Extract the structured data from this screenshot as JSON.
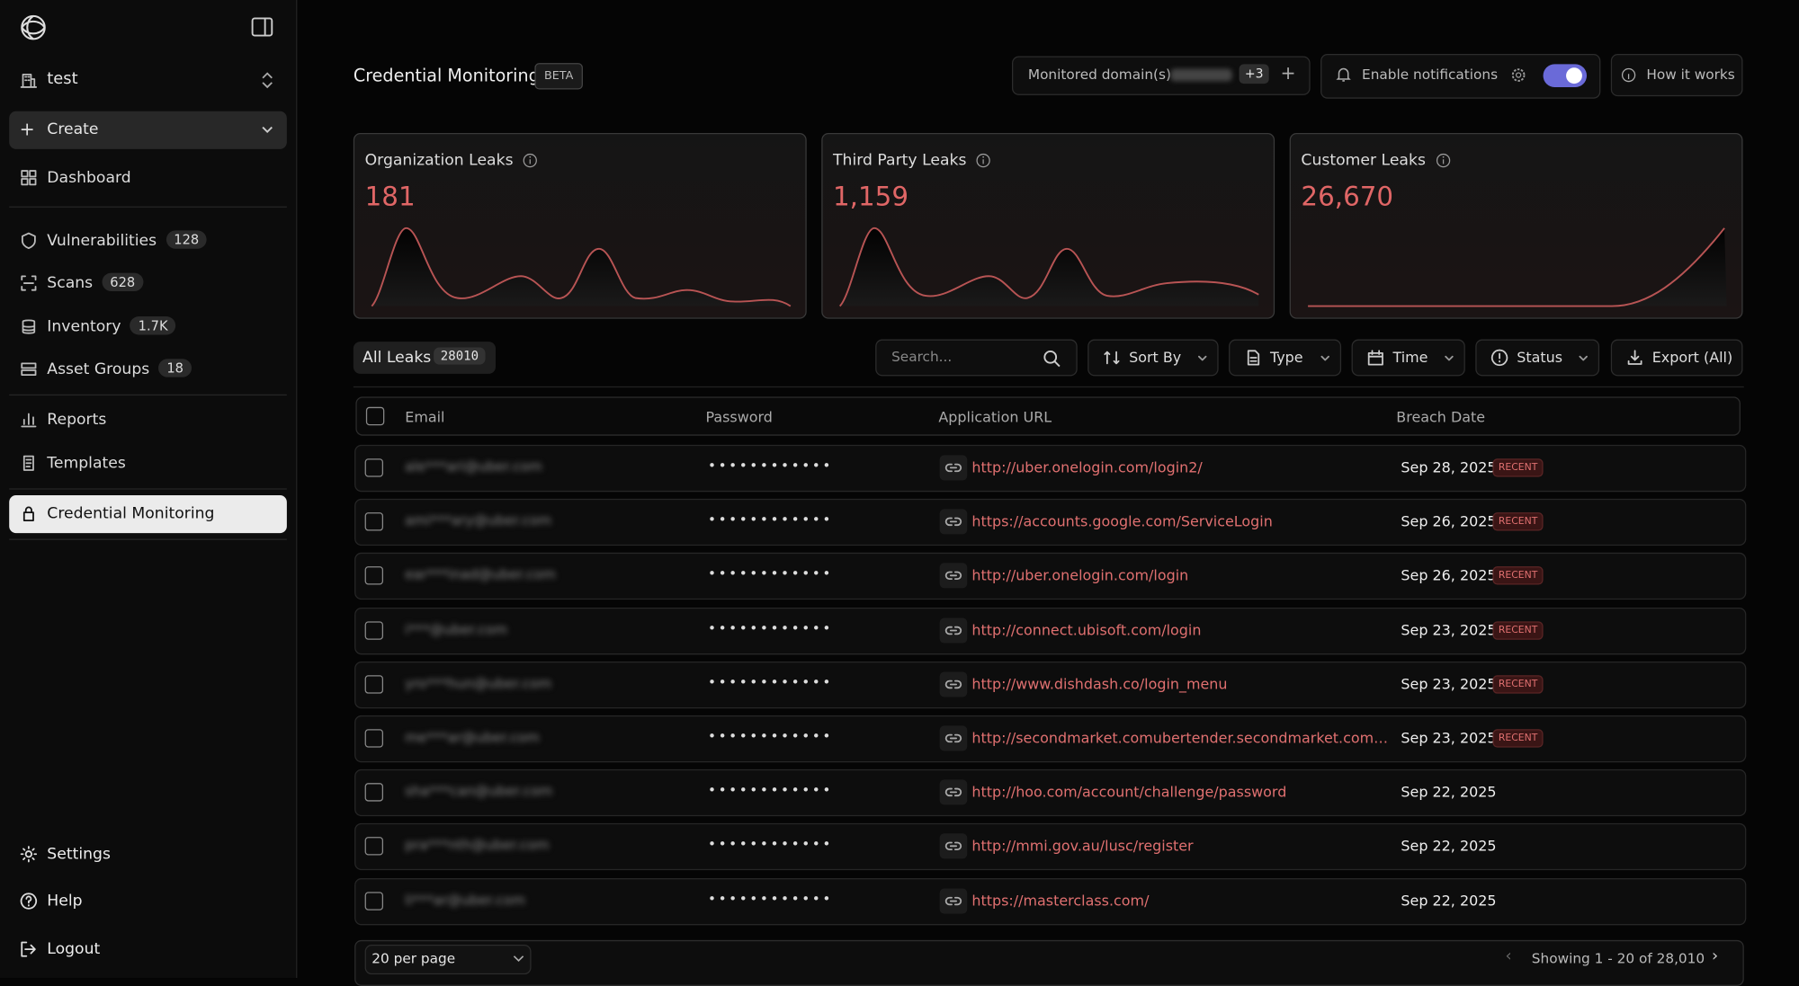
{
  "sidebar": {
    "workspace": "test",
    "create": "Create",
    "nav": [
      {
        "label": "Dashboard"
      },
      {
        "label": "Vulnerabilities",
        "badge": "128"
      },
      {
        "label": "Scans",
        "badge": "628"
      },
      {
        "label": "Inventory",
        "badge": "1.7K"
      },
      {
        "label": "Asset Groups",
        "badge": "18"
      },
      {
        "label": "Reports"
      },
      {
        "label": "Templates"
      },
      {
        "label": "Credential Monitoring"
      }
    ],
    "nav_bottom": [
      "Settings",
      "Help",
      "Logout"
    ]
  },
  "header": {
    "title": "Credential Monitoring",
    "badge": "BETA",
    "monitored_domains": "Monitored domain(s)",
    "domain_count": "+3",
    "notifications": "Enable notifications",
    "how_it_works": "How it works"
  },
  "cards": [
    {
      "label": "Organization Leaks",
      "value": "181"
    },
    {
      "label": "Third Party Leaks",
      "value": "1,159"
    },
    {
      "label": "Customer Leaks",
      "value": "26,670"
    }
  ],
  "filters": {
    "tab": "All Leaks",
    "tab_count": "28010",
    "search": "Search...",
    "sort": "Sort By",
    "type": "Type",
    "time": "Time",
    "status": "Status",
    "export": "Export (All)"
  },
  "table": {
    "columns": [
      "Email",
      "Password",
      "Application URL",
      "Breach Date"
    ],
    "rows": [
      {
        "email": "ale***ari@uber.com",
        "password": "••••••••••••",
        "url": "http://uber.onelogin.com/login2/",
        "date": "Sep 28, 2025",
        "status": "RECENT"
      },
      {
        "email": "ami***ary@uber.com",
        "password": "••••••••••••",
        "url": "https://accounts.google.com/ServiceLogin",
        "date": "Sep 26, 2025",
        "status": "RECENT"
      },
      {
        "email": "ear***inad@uber.com",
        "password": "••••••••••••",
        "url": "http://uber.onelogin.com/login",
        "date": "Sep 26, 2025",
        "status": "RECENT"
      },
      {
        "email": "i***@uber.com",
        "password": "••••••••••••",
        "url": "http://connect.ubisoft.com/login",
        "date": "Sep 23, 2025",
        "status": "RECENT"
      },
      {
        "email": "yro***hun@uber.com",
        "password": "••••••••••••",
        "url": "http://www.dishdash.co/login_menu",
        "date": "Sep 23, 2025",
        "status": "RECENT"
      },
      {
        "email": "me***ar@uber.com",
        "password": "••••••••••••",
        "url": "http://secondmarket.comubertender.secondmarket.com…",
        "date": "Sep 23, 2025",
        "status": "RECENT"
      },
      {
        "email": "sha***can@uber.com",
        "password": "••••••••••••",
        "url": "http://hoo.com/account/challenge/password",
        "date": "Sep 22, 2025"
      },
      {
        "email": "pra***nth@uber.com",
        "password": "••••••••••••",
        "url": "http://mmi.gov.au/lusc/register",
        "date": "Sep 22, 2025"
      },
      {
        "email": "li***ar@uber.com",
        "password": "••••••••••••",
        "url": "https://masterclass.com/",
        "date": "Sep 22, 2025"
      }
    ]
  },
  "footer": {
    "per_page": "20 per page",
    "showing": "Showing 1 - 20 of 28,010"
  }
}
